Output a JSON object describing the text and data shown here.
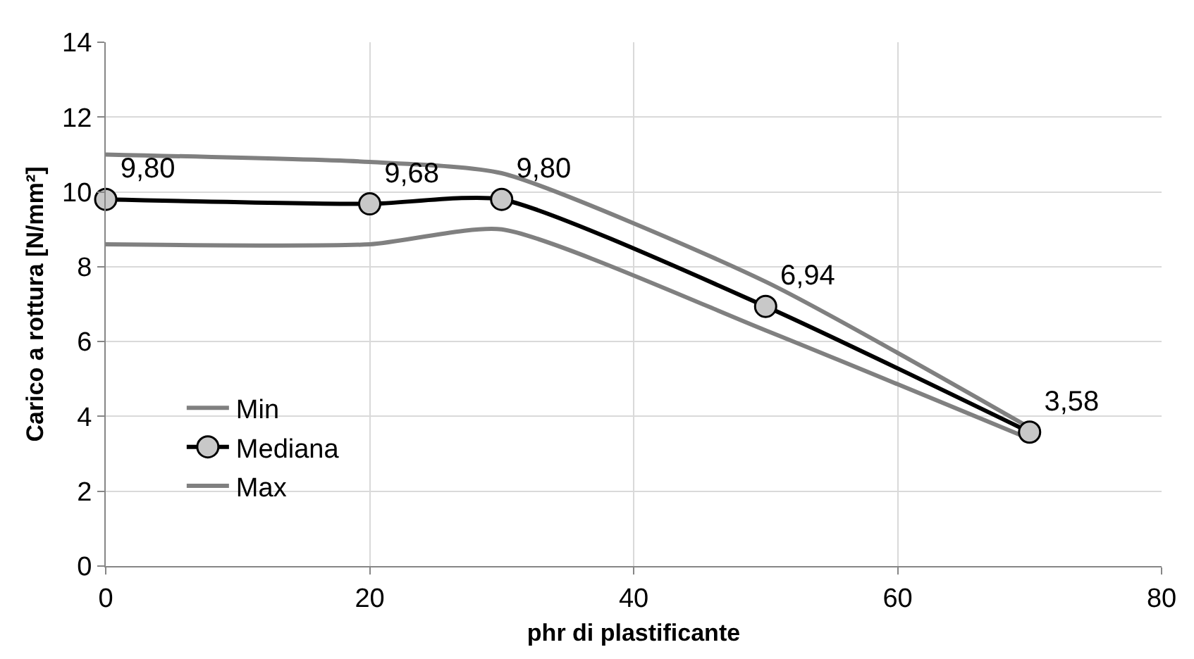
{
  "chart_data": {
    "type": "line",
    "xlabel": "phr di plastificante",
    "ylabel": "Carico a rottura [N/mm²]",
    "x": [
      0,
      20,
      30,
      50,
      70
    ],
    "series": [
      {
        "name": "Min",
        "color": "#808080",
        "values": [
          8.6,
          8.6,
          9.0,
          6.3,
          3.4
        ],
        "marker": "none"
      },
      {
        "name": "Mediana",
        "color": "#000000",
        "values": [
          9.8,
          9.68,
          9.8,
          6.94,
          3.58
        ],
        "marker": "circle",
        "value_labels": [
          "9,80",
          "9,68",
          "9,80",
          "6,94",
          "3,58"
        ]
      },
      {
        "name": "Max",
        "color": "#808080",
        "values": [
          11.0,
          10.8,
          10.5,
          7.6,
          3.7
        ],
        "marker": "none"
      }
    ],
    "xlim": [
      0,
      80
    ],
    "xticks": [
      0,
      20,
      40,
      60,
      80
    ],
    "ylim": [
      0,
      14
    ],
    "yticks": [
      0,
      2,
      4,
      6,
      8,
      10,
      12,
      14
    ],
    "grid": true,
    "legend": "bottom left",
    "line_style": "solid"
  }
}
